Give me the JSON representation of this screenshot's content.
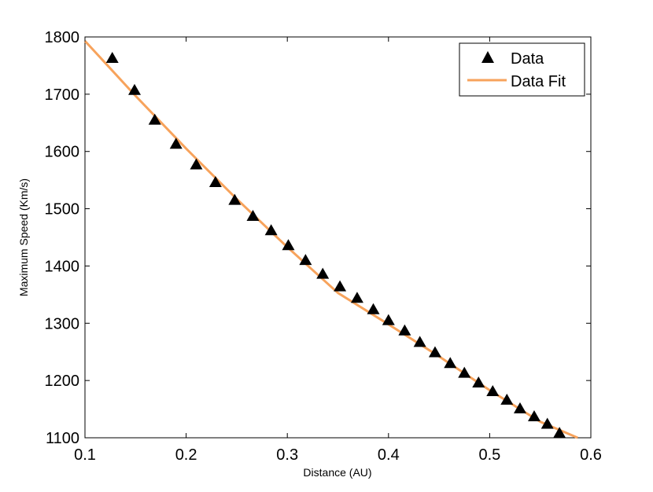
{
  "chart_data": {
    "type": "scatter",
    "title": "",
    "xlabel": "Distance (AU)",
    "ylabel": "Maximum Speed (Km/s)",
    "xlim": [
      0.1,
      0.6
    ],
    "ylim": [
      1100,
      1800
    ],
    "xticks": [
      "0.1",
      "0.2",
      "0.3",
      "0.4",
      "0.5",
      "0.6"
    ],
    "yticks": [
      "1100",
      "1200",
      "1300",
      "1400",
      "1500",
      "1600",
      "1700",
      "1800"
    ],
    "grid": false,
    "legend_position": "top-right",
    "series": [
      {
        "name": "Data",
        "kind": "markers",
        "marker": "triangle",
        "color": "#000000",
        "points": [
          [
            0.127,
            1763
          ],
          [
            0.149,
            1707
          ],
          [
            0.169,
            1655
          ],
          [
            0.19,
            1613
          ],
          [
            0.21,
            1577
          ],
          [
            0.229,
            1546
          ],
          [
            0.248,
            1515
          ],
          [
            0.266,
            1487
          ],
          [
            0.284,
            1462
          ],
          [
            0.301,
            1436
          ],
          [
            0.318,
            1410
          ],
          [
            0.335,
            1386
          ],
          [
            0.352,
            1364
          ],
          [
            0.369,
            1344
          ],
          [
            0.385,
            1324
          ],
          [
            0.4,
            1305
          ],
          [
            0.416,
            1287
          ],
          [
            0.431,
            1267
          ],
          [
            0.446,
            1249
          ],
          [
            0.461,
            1230
          ],
          [
            0.475,
            1213
          ],
          [
            0.489,
            1196
          ],
          [
            0.503,
            1181
          ],
          [
            0.517,
            1166
          ],
          [
            0.53,
            1151
          ],
          [
            0.544,
            1137
          ],
          [
            0.557,
            1124
          ],
          [
            0.569,
            1108
          ]
        ]
      },
      {
        "name": "Data Fit",
        "kind": "line",
        "color": "#F7A35C",
        "points": [
          [
            0.1,
            1793
          ],
          [
            0.15,
            1697
          ],
          [
            0.2,
            1605
          ],
          [
            0.25,
            1517
          ],
          [
            0.3,
            1433
          ],
          [
            0.35,
            1353
          ],
          [
            0.4,
            1298
          ],
          [
            0.45,
            1242
          ],
          [
            0.5,
            1183
          ],
          [
            0.55,
            1128
          ],
          [
            0.587,
            1100
          ]
        ]
      }
    ]
  }
}
